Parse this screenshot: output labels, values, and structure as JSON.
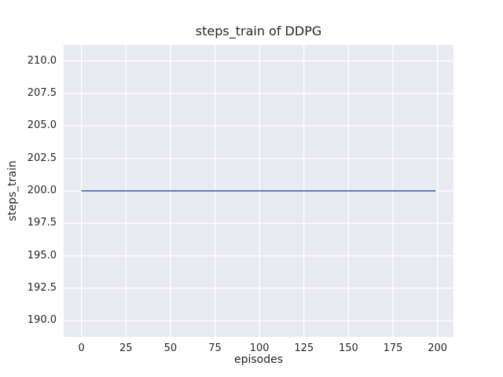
{
  "figure": {
    "background": "#ffffff"
  },
  "chart_data": {
    "type": "line",
    "title": "steps_train of DDPG",
    "xlabel": "episodes",
    "ylabel": "steps_train",
    "xlim": [
      -10,
      209
    ],
    "ylim": [
      188.75,
      211.25
    ],
    "xticks": [
      0,
      25,
      50,
      75,
      100,
      125,
      150,
      175,
      200
    ],
    "yticks": [
      190.0,
      192.5,
      195.0,
      197.5,
      200.0,
      202.5,
      205.0,
      207.5,
      210.0
    ],
    "xtick_labels": [
      "0",
      "25",
      "50",
      "75",
      "100",
      "125",
      "150",
      "175",
      "200"
    ],
    "ytick_labels": [
      "190.0",
      "192.5",
      "195.0",
      "197.5",
      "200.0",
      "202.5",
      "205.0",
      "207.5",
      "210.0"
    ],
    "grid": true,
    "legend": "none",
    "plot_background": "#eaeaf2",
    "grid_color": "#ffffff",
    "text_color": "#262626",
    "series": [
      {
        "name": "steps_train",
        "color": "#4c72b0",
        "points": [
          [
            0,
            200
          ],
          [
            199,
            200
          ]
        ]
      }
    ]
  }
}
